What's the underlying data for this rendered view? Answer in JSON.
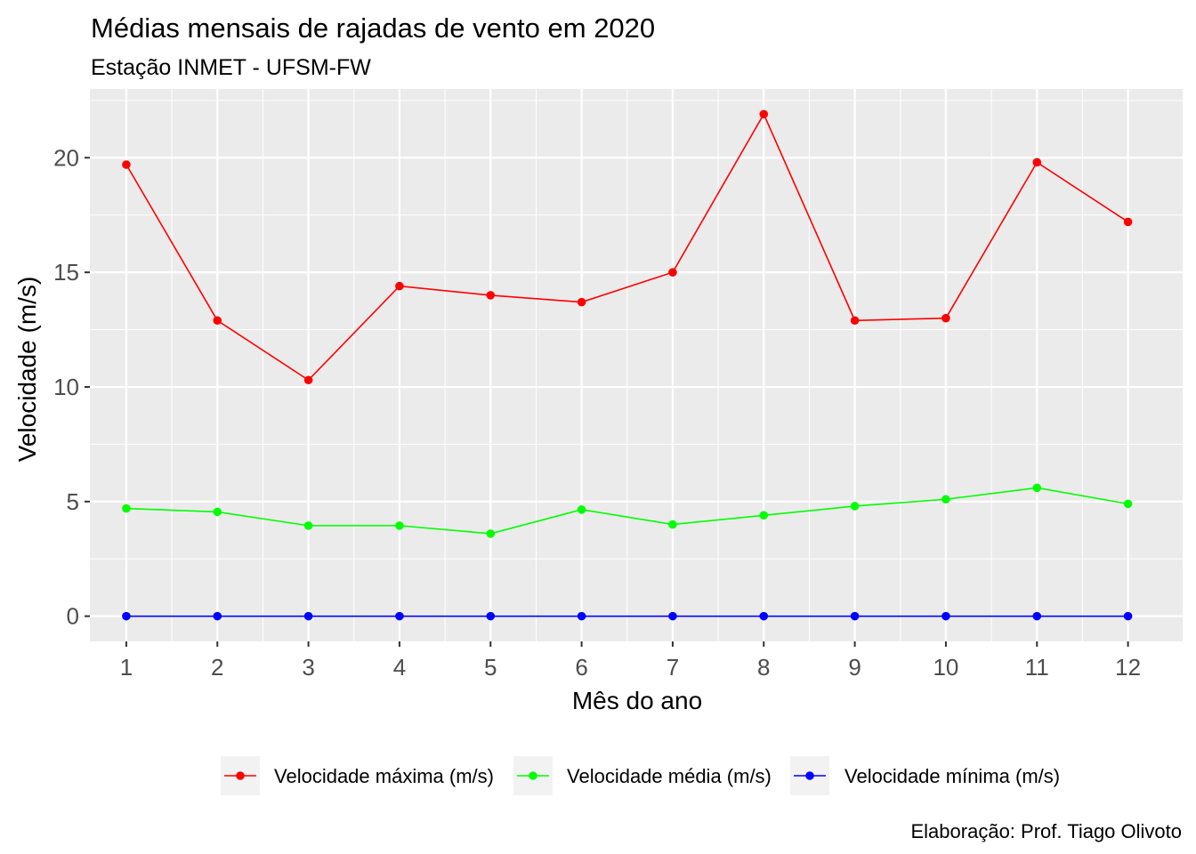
{
  "chart_data": {
    "type": "line",
    "title": "Médias mensais de rajadas de vento em 2020",
    "subtitle": "Estação INMET - UFSM-FW",
    "xlabel": "Mês do ano",
    "ylabel": "Velocidade (m/s)",
    "caption": "Elaboração: Prof. Tiago Olivoto",
    "x": [
      1,
      2,
      3,
      4,
      5,
      6,
      7,
      8,
      9,
      10,
      11,
      12
    ],
    "xlim": [
      0.6,
      12.6
    ],
    "ylim": [
      -1.1,
      23.0
    ],
    "yticks": [
      0,
      5,
      10,
      15,
      20
    ],
    "grid": true,
    "legend_position": "bottom",
    "series": [
      {
        "name": "Velocidade máxima (m/s)",
        "color": "#ff0000",
        "values": [
          19.7,
          12.9,
          10.3,
          14.4,
          14.0,
          13.7,
          15.0,
          21.9,
          12.9,
          13.0,
          19.8,
          17.2
        ]
      },
      {
        "name": "Velocidade média (m/s)",
        "color": "#00ff00",
        "values": [
          4.7,
          4.55,
          3.95,
          3.95,
          3.6,
          4.65,
          4.0,
          4.4,
          4.8,
          5.1,
          5.6,
          4.9
        ]
      },
      {
        "name": "Velocidade mínima (m/s)",
        "color": "#0000ff",
        "values": [
          0,
          0,
          0,
          0,
          0,
          0,
          0,
          0,
          0,
          0,
          0,
          0
        ]
      }
    ]
  }
}
